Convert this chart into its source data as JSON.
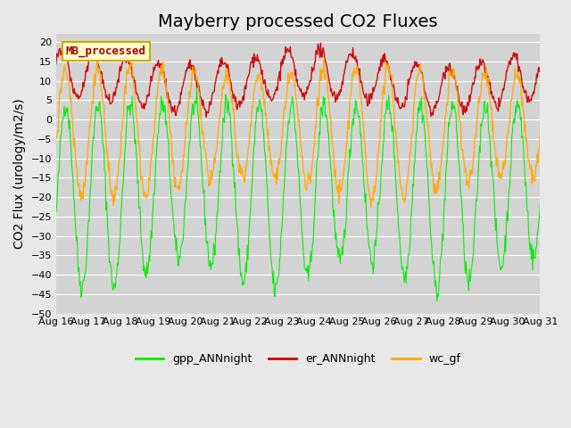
{
  "title": "Mayberry processed CO2 Fluxes",
  "ylabel": "CO2 Flux (urology/m2/s)",
  "ylim": [
    -50,
    22
  ],
  "yticks": [
    20,
    15,
    10,
    5,
    0,
    -5,
    -10,
    -15,
    -20,
    -25,
    -30,
    -35,
    -40,
    -45,
    -50
  ],
  "xtick_labels": [
    "Aug 16",
    "Aug 17",
    "Aug 18",
    "Aug 19",
    "Aug 20",
    "Aug 21",
    "Aug 22",
    "Aug 23",
    "Aug 24",
    "Aug 25",
    "Aug 26",
    "Aug 27",
    "Aug 28",
    "Aug 29",
    "Aug 30",
    "Aug 31"
  ],
  "legend_items": [
    "gpp_ANNnight",
    "er_ANNnight",
    "wc_gf"
  ],
  "line_colors": {
    "gpp": "#00ee00",
    "er": "#cc0000",
    "wc": "#ffaa00"
  },
  "legend_colors": [
    "#00ee00",
    "#cc0000",
    "#ffaa00"
  ],
  "mb_box_facecolor": "#ffffcc",
  "mb_box_edgecolor": "#ccaa00",
  "mb_text_color": "#aa0000",
  "bg_color": "#e8e8e8",
  "plot_bg_color": "#d3d3d3",
  "title_fontsize": 14,
  "axis_fontsize": 10,
  "tick_fontsize": 8,
  "n_points_per_day": 48,
  "n_days": 16
}
